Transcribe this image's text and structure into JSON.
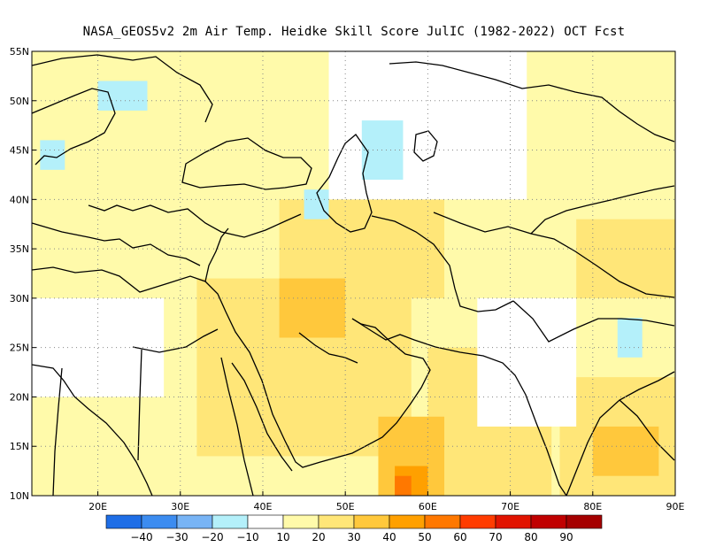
{
  "title": "NASA_GEOS5v2  2m Air Temp. Heidke Skill Score JulIC (1982-2022) OCT Fcst",
  "map": {
    "lon_range": [
      12,
      90
    ],
    "lat_range": [
      10,
      55
    ],
    "grid": true,
    "lat_ticks": [
      {
        "value": 55,
        "label": "55N"
      },
      {
        "value": 50,
        "label": "50N"
      },
      {
        "value": 45,
        "label": "45N"
      },
      {
        "value": 40,
        "label": "40N"
      },
      {
        "value": 35,
        "label": "35N"
      },
      {
        "value": 30,
        "label": "30N"
      },
      {
        "value": 25,
        "label": "25N"
      },
      {
        "value": 20,
        "label": "20N"
      },
      {
        "value": 15,
        "label": "15N"
      },
      {
        "value": 10,
        "label": "10N"
      }
    ],
    "lon_ticks": [
      {
        "value": 20,
        "label": "20E"
      },
      {
        "value": 30,
        "label": "30E"
      },
      {
        "value": 40,
        "label": "40E"
      },
      {
        "value": 50,
        "label": "50E"
      },
      {
        "value": 60,
        "label": "60E"
      },
      {
        "value": 70,
        "label": "70E"
      },
      {
        "value": 80,
        "label": "80E"
      },
      {
        "value": 90,
        "label": "90E"
      }
    ]
  },
  "colorbar": {
    "colors": [
      "#1e6ee6",
      "#3c8cf0",
      "#78b4f5",
      "#b4f0fa",
      "#ffffff",
      "#fffaaa",
      "#ffe678",
      "#ffc83c",
      "#ffa000",
      "#ff7800",
      "#ff3c00",
      "#e11400",
      "#c00000",
      "#a50000"
    ],
    "labels": [
      "-40",
      "-30",
      "-20",
      "-10",
      "10",
      "20",
      "30",
      "40",
      "50",
      "60",
      "70",
      "80",
      "90"
    ]
  },
  "heatmap_regions": [
    {
      "color": "#fffaaa",
      "desc": "base-light-yellow",
      "lon": [
        12,
        90
      ],
      "lat": [
        10,
        55
      ]
    },
    {
      "color": "#ffe678",
      "lon": [
        32,
        58
      ],
      "lat": [
        14,
        32
      ]
    },
    {
      "color": "#ffe678",
      "lon": [
        42,
        62
      ],
      "lat": [
        30,
        40
      ]
    },
    {
      "color": "#ffe678",
      "lon": [
        60,
        75
      ],
      "lat": [
        10,
        25
      ]
    },
    {
      "color": "#ffe678",
      "lon": [
        76,
        90
      ],
      "lat": [
        10,
        22
      ]
    },
    {
      "color": "#ffe678",
      "lon": [
        78,
        90
      ],
      "lat": [
        30,
        38
      ]
    },
    {
      "color": "#ffc83c",
      "lon": [
        54,
        62
      ],
      "lat": [
        10,
        18
      ]
    },
    {
      "color": "#ffc83c",
      "lon": [
        42,
        50
      ],
      "lat": [
        26,
        32
      ]
    },
    {
      "color": "#ffc83c",
      "lon": [
        80,
        88
      ],
      "lat": [
        12,
        17
      ]
    },
    {
      "color": "#ffa000",
      "lon": [
        56,
        60
      ],
      "lat": [
        10,
        13
      ]
    },
    {
      "color": "#ff7800",
      "lon": [
        56,
        58
      ],
      "lat": [
        10,
        12
      ]
    },
    {
      "color": "#ffffff",
      "lon": [
        48,
        72
      ],
      "lat": [
        40,
        55
      ]
    },
    {
      "color": "#ffffff",
      "lon": [
        12,
        28
      ],
      "lat": [
        20,
        30
      ]
    },
    {
      "color": "#ffffff",
      "lon": [
        66,
        78
      ],
      "lat": [
        17,
        30
      ]
    },
    {
      "color": "#b4f0fa",
      "lon": [
        20,
        26
      ],
      "lat": [
        49,
        52
      ]
    },
    {
      "color": "#b4f0fa",
      "lon": [
        13,
        16
      ],
      "lat": [
        43,
        46
      ]
    },
    {
      "color": "#b4f0fa",
      "lon": [
        52,
        57
      ],
      "lat": [
        42,
        48
      ]
    },
    {
      "color": "#b4f0fa",
      "lon": [
        83,
        86
      ],
      "lat": [
        24,
        28
      ]
    },
    {
      "color": "#b4f0fa",
      "lon": [
        45,
        48
      ],
      "lat": [
        38,
        41
      ]
    }
  ]
}
